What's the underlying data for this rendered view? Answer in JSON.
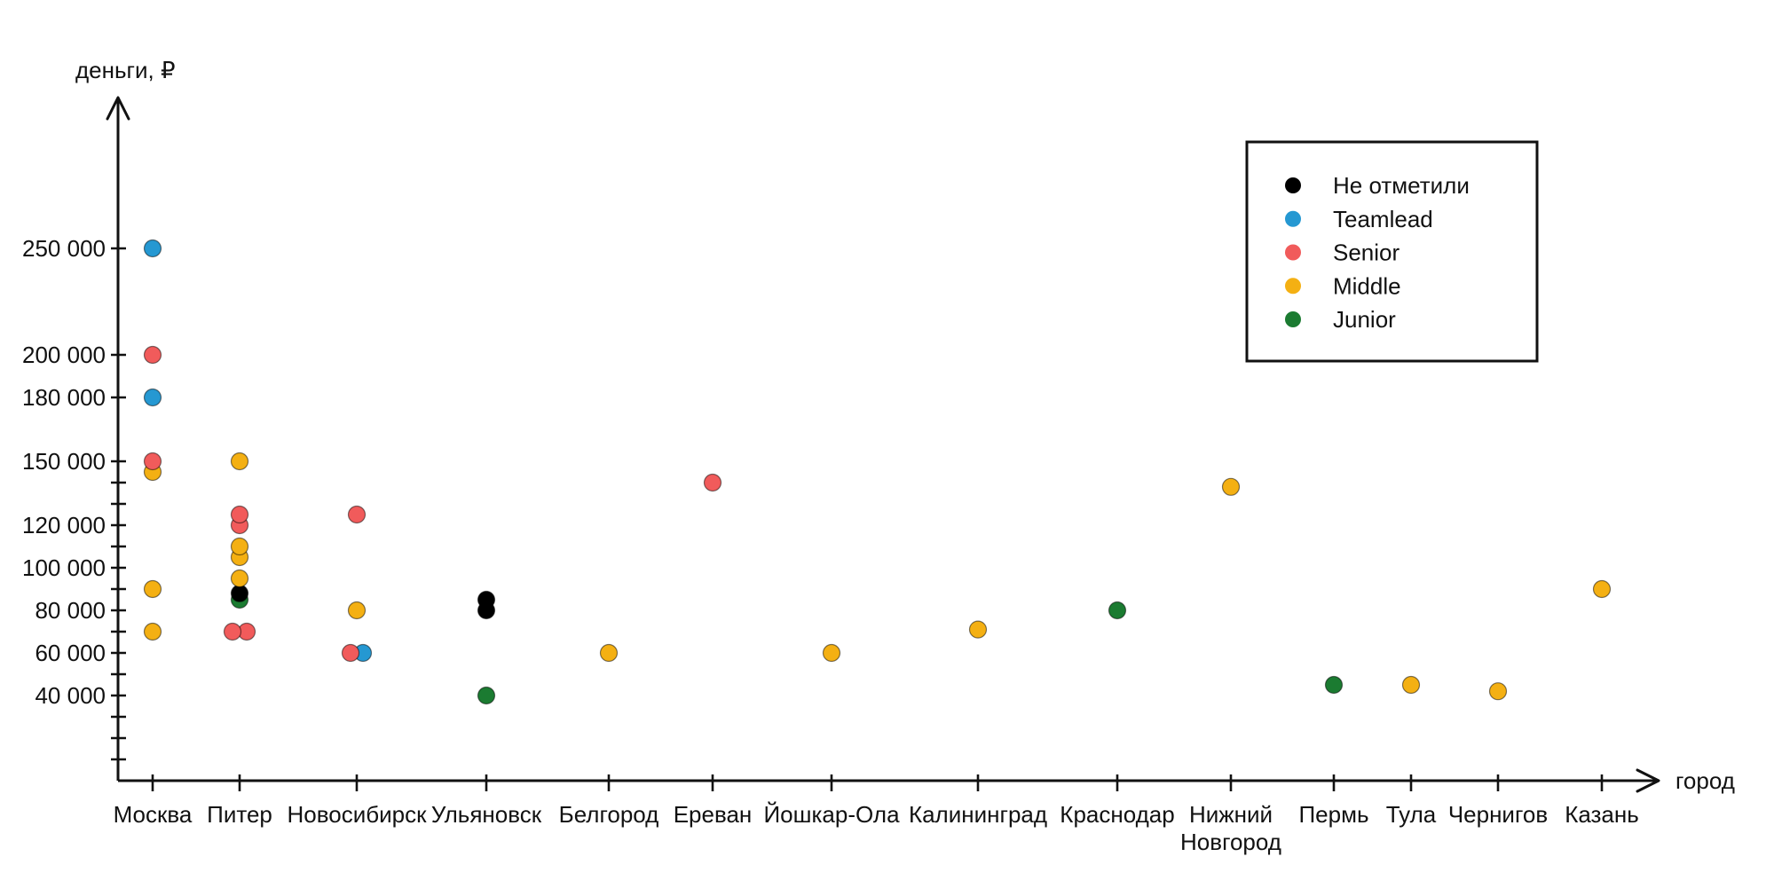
{
  "chart_data": {
    "type": "scatter",
    "title": "",
    "ylabel": "деньги, ₽",
    "xlabel": "город",
    "categories": [
      "Москва",
      "Питер",
      "Новосибирск",
      "Ульяновск",
      "Белгород",
      "Ереван",
      "Йошкар-Ола",
      "Калининград",
      "Краснодар",
      "Нижний Новгород",
      "Пермь",
      "Тула",
      "Чернигов",
      "Казань"
    ],
    "ylim": [
      0,
      270000
    ],
    "y_ticks": {
      "labeled": [
        250000,
        200000,
        180000,
        150000,
        120000,
        100000,
        80000,
        60000,
        40000
      ],
      "minor": [
        140000,
        130000,
        110000,
        90000,
        70000,
        50000,
        30000,
        20000,
        10000
      ]
    },
    "grid": "off",
    "legend_position": "top-right",
    "series": [
      {
        "name": "Не отметили",
        "color": "#000000",
        "points": [
          {
            "city": "Питер",
            "value": 88000
          },
          {
            "city": "Ульяновск",
            "value": 85000
          },
          {
            "city": "Ульяновск",
            "value": 80000
          }
        ]
      },
      {
        "name": "Teamlead",
        "color": "#2598D2",
        "points": [
          {
            "city": "Москва",
            "value": 250000
          },
          {
            "city": "Москва",
            "value": 180000
          },
          {
            "city": "Новосибирск",
            "value": 60000,
            "dx": 7
          }
        ]
      },
      {
        "name": "Senior",
        "color": "#F15B5B",
        "points": [
          {
            "city": "Москва",
            "value": 200000
          },
          {
            "city": "Москва",
            "value": 150000
          },
          {
            "city": "Питер",
            "value": 125000
          },
          {
            "city": "Питер",
            "value": 120000
          },
          {
            "city": "Питер",
            "value": 70000,
            "dx": 8
          },
          {
            "city": "Питер",
            "value": 70000,
            "dx": -8
          },
          {
            "city": "Новосибирск",
            "value": 125000
          },
          {
            "city": "Новосибирск",
            "value": 60000,
            "dx": -7
          },
          {
            "city": "Ереван",
            "value": 140000
          }
        ]
      },
      {
        "name": "Middle",
        "color": "#F4B013",
        "points": [
          {
            "city": "Москва",
            "value": 145000
          },
          {
            "city": "Москва",
            "value": 90000
          },
          {
            "city": "Москва",
            "value": 70000
          },
          {
            "city": "Питер",
            "value": 150000
          },
          {
            "city": "Питер",
            "value": 110000
          },
          {
            "city": "Питер",
            "value": 105000
          },
          {
            "city": "Питер",
            "value": 95000
          },
          {
            "city": "Новосибирск",
            "value": 80000
          },
          {
            "city": "Белгород",
            "value": 60000
          },
          {
            "city": "Йошкар-Ола",
            "value": 60000
          },
          {
            "city": "Калининград",
            "value": 71000
          },
          {
            "city": "Нижний Новгород",
            "value": 138000
          },
          {
            "city": "Тула",
            "value": 45000
          },
          {
            "city": "Чернигов",
            "value": 42000
          },
          {
            "city": "Казань",
            "value": 90000
          }
        ]
      },
      {
        "name": "Junior",
        "color": "#1B7B31",
        "points": [
          {
            "city": "Питер",
            "value": 85000
          },
          {
            "city": "Ульяновск",
            "value": 40000
          },
          {
            "city": "Краснодар",
            "value": 80000
          },
          {
            "city": "Пермь",
            "value": 45000
          }
        ]
      }
    ],
    "layout_hints": {
      "city_x": {
        "Москва": 172,
        "Питер": 270,
        "Новосибирск": 402,
        "Ульяновск": 548,
        "Белгород": 686,
        "Ереван": 803,
        "Йошкар-Ола": 937,
        "Калининград": 1102,
        "Краснодар": 1259,
        "Нижний Новгород": 1387,
        "Пермь": 1503,
        "Тула": 1590,
        "Чернигов": 1688,
        "Казань": 1805
      },
      "city_label_lines": {
        "Нижний Новгород": [
          "Нижний",
          "Новгород"
        ]
      }
    }
  },
  "legend": {
    "items": [
      {
        "label": "Не отметили",
        "color": "#000000"
      },
      {
        "label": "Teamlead",
        "color": "#2598D2"
      },
      {
        "label": "Senior",
        "color": "#F15B5B"
      },
      {
        "label": "Middle",
        "color": "#F4B013"
      },
      {
        "label": "Junior",
        "color": "#1B7B31"
      }
    ]
  }
}
